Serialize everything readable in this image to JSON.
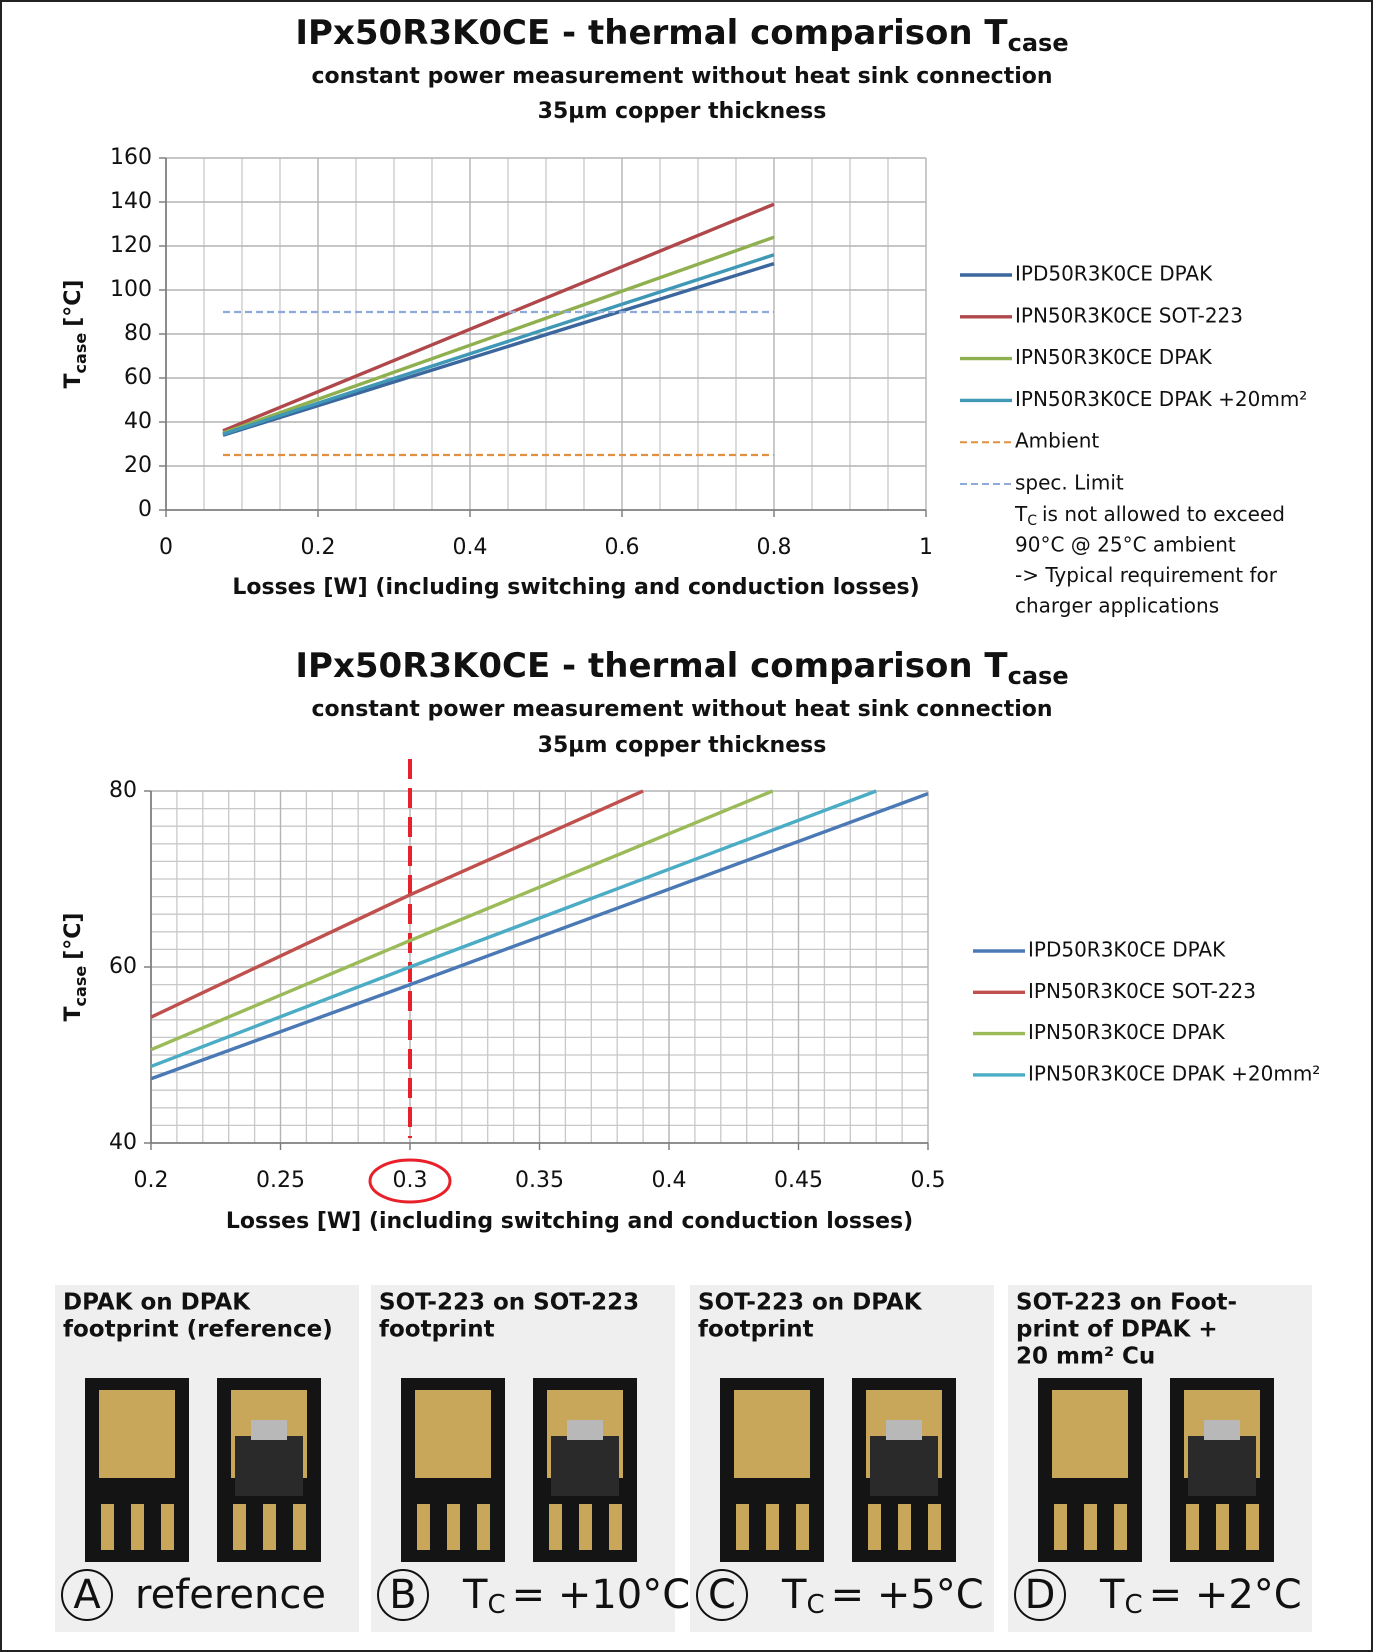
{
  "chart_data": [
    {
      "type": "line",
      "title": "IPx50R3K0CE - thermal comparison T",
      "title_subscript": "case",
      "subtitle": [
        "constant power measurement without heat sink connection",
        "35µm copper thickness"
      ],
      "xlabel": "Losses [W] (including switching and conduction losses)",
      "ylabel": "T",
      "ylabel_subscript": "case",
      "ylabel_unit": "[°C]",
      "xlim": [
        0,
        1
      ],
      "xticks": [
        0,
        0.2,
        0.4,
        0.6,
        0.8,
        1
      ],
      "ylim": [
        0,
        160
      ],
      "yticks": [
        0,
        20,
        40,
        60,
        80,
        100,
        120,
        140,
        160
      ],
      "grid": true,
      "grid_divisions": [
        4,
        1
      ],
      "legend": "right",
      "series": [
        {
          "name": "IPD50R3K0CE DPAK",
          "color": "#3b679e",
          "x": [
            0.075,
            0.8
          ],
          "values": [
            34,
            112
          ]
        },
        {
          "name": "IPN50R3K0CE SOT-223",
          "color": "#b0474a",
          "x": [
            0.075,
            0.8
          ],
          "values": [
            36,
            139
          ]
        },
        {
          "name": "IPN50R3K0CE DPAK",
          "color": "#8fb04f",
          "x": [
            0.075,
            0.8
          ],
          "values": [
            35,
            124
          ]
        },
        {
          "name": "IPN50R3K0CE DPAK +20mm²",
          "color": "#3f98b5",
          "x": [
            0.075,
            0.8
          ],
          "values": [
            34.5,
            116
          ]
        },
        {
          "name": "Ambient",
          "color": "#e0913f",
          "dashed": true,
          "x": [
            0.075,
            0.8
          ],
          "values": [
            25,
            25
          ]
        },
        {
          "name": "spec. Limit",
          "color": "#8eaadb",
          "dashed": true,
          "x": [
            0.075,
            0.8
          ],
          "values": [
            90,
            90
          ]
        }
      ],
      "annotation": {
        "symbol": "T",
        "subscript": "C",
        "lines": [
          "is not allowed to exceed",
          "90°C @ 25°C ambient",
          "-> Typical requirement for",
          "charger applications"
        ]
      }
    },
    {
      "type": "line",
      "title": "IPx50R3K0CE - thermal comparison T",
      "title_subscript": "case",
      "subtitle": [
        "constant power measurement without heat sink connection",
        "35µm copper thickness"
      ],
      "xlabel": "Losses [W] (including switching and conduction losses)",
      "ylabel": "T",
      "ylabel_subscript": "case",
      "ylabel_unit": "[°C]",
      "xlim": [
        0.2,
        0.5
      ],
      "xticks": [
        0.2,
        0.25,
        0.3,
        0.35,
        0.4,
        0.45,
        0.5
      ],
      "ylim": [
        40,
        80
      ],
      "yticks": [
        40,
        60,
        80
      ],
      "grid": true,
      "grid_divisions": [
        5,
        10
      ],
      "legend": "right",
      "highlight_x": 0.3,
      "highlight_color": "#e8202a",
      "series": [
        {
          "name": "IPD50R3K0CE DPAK",
          "color": "#4a79b5",
          "x": [
            0.2,
            0.3,
            0.5
          ],
          "values": [
            47.3,
            58,
            79.7
          ]
        },
        {
          "name": "IPN50R3K0CE SOT-223",
          "color": "#c0504d",
          "x": [
            0.2,
            0.3,
            0.39
          ],
          "values": [
            54.3,
            68.2,
            80
          ]
        },
        {
          "name": "IPN50R3K0CE DPAK",
          "color": "#9bbb59",
          "x": [
            0.2,
            0.3,
            0.44
          ],
          "values": [
            50.6,
            63,
            80
          ]
        },
        {
          "name": "IPN50R3K0CE DPAK +20mm²",
          "color": "#4bacc6",
          "x": [
            0.2,
            0.3,
            0.48
          ],
          "values": [
            48.7,
            60,
            80
          ]
        }
      ]
    }
  ],
  "panels": [
    {
      "title": [
        "DPAK on DPAK",
        "footprint (reference)"
      ],
      "letter": "A",
      "caption": {
        "text": "reference"
      }
    },
    {
      "title": [
        "SOT-223 on SOT-223",
        "footprint"
      ],
      "letter": "B",
      "caption": {
        "symbol": "T",
        "subscript": "C",
        "text": "= +10°C"
      }
    },
    {
      "title": [
        "SOT-223 on DPAK",
        "footprint"
      ],
      "letter": "C",
      "caption": {
        "symbol": "T",
        "subscript": "C",
        "text": "= +5°C"
      }
    },
    {
      "title": [
        "SOT-223 on Foot-",
        "print of DPAK +",
        "20 mm² Cu"
      ],
      "letter": "D",
      "caption": {
        "symbol": "T",
        "subscript": "C",
        "text": "= +2°C"
      }
    }
  ]
}
